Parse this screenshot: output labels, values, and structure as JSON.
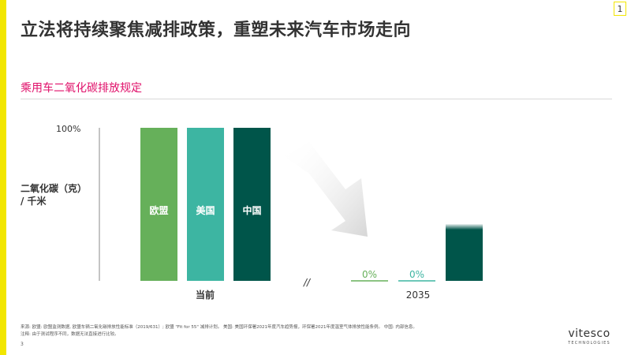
{
  "colors": {
    "accent_bar": "#f2e600",
    "subtitle": "#e0106a",
    "eu": "#66b05a",
    "us": "#3db5a2",
    "cn": "#00554a",
    "zero_eu": "#66b05a",
    "zero_us": "#3db5a2"
  },
  "header": {
    "title": "立法将持续聚焦减排政策，重塑未来汽车市场走向",
    "page_badge": "1"
  },
  "section": {
    "subtitle": "乘用车二氧化碳排放规定"
  },
  "chart_data": {
    "type": "bar",
    "y_axis": {
      "label_line1": "二氧化碳（克）",
      "label_line2": "/ 千米",
      "top_tick": "100%",
      "ylim": [
        0,
        100
      ]
    },
    "groups": [
      {
        "label": "当前",
        "bars": [
          {
            "name": "欧盟",
            "value": 100,
            "color_key": "eu"
          },
          {
            "name": "美国",
            "value": 100,
            "color_key": "us"
          },
          {
            "name": "中国",
            "value": 100,
            "color_key": "cn"
          }
        ]
      },
      {
        "label": "2035",
        "bars": [
          {
            "value": 0,
            "label": "0%",
            "color_key": "zero_eu"
          },
          {
            "value": 0,
            "label": "0%",
            "color_key": "zero_us"
          },
          {
            "value": 37,
            "color_key": "cn"
          }
        ]
      }
    ],
    "axis_break": "//"
  },
  "footer": {
    "source": "来源: 欧盟: 欧盟监测数据, 欧盟车辆二氧化碳排放性能标准（2019/631）; 欧盟 \"Fit for 55\" 减排计划。 美国: 美国环保署2021年度汽车趋势报，环保署2021年度温室气体排放性能条例。 中国: 内部信息。",
    "note": "注释: 由于测试程序不同，数据无法直接进行比较。",
    "page_number": "3"
  },
  "logo": {
    "name": "vitesco",
    "sub": "TECHNOLOGIES"
  }
}
